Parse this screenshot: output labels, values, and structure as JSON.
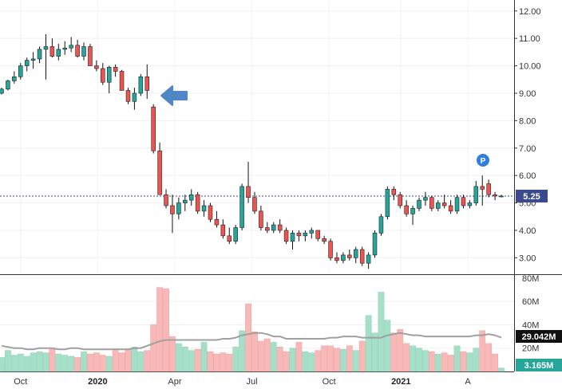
{
  "chart_data": {
    "type": "candlestick",
    "price_axis": {
      "ticks": [
        "12.00",
        "11.00",
        "10.00",
        "9.00",
        "8.00",
        "7.00",
        "6.00",
        "5.00",
        "4.00",
        "3.00"
      ],
      "tick_values": [
        12,
        11,
        10,
        9,
        8,
        7,
        6,
        5,
        4,
        3
      ],
      "range": [
        2.4,
        12.4
      ]
    },
    "volume_axis": {
      "ticks": [
        "80M",
        "60M",
        "40M",
        "20M"
      ],
      "tick_values": [
        80,
        60,
        40,
        20
      ],
      "range": [
        0,
        82
      ]
    },
    "x_axis": {
      "labels": [
        "Oct",
        "2020",
        "Apr",
        "Jul",
        "Oct",
        "2021",
        "A"
      ],
      "bold": [
        false,
        true,
        false,
        false,
        false,
        true,
        false
      ],
      "positions": [
        4,
        19,
        34,
        49,
        64,
        78,
        91
      ]
    },
    "last_price": "5.25",
    "last_price_value": 5.25,
    "last_volume": "3.165M",
    "avg_volume": "29.042M",
    "marker": "P",
    "colors": {
      "up": "#26a69a",
      "down": "#ef5350",
      "up_vol": "#a5dfc8",
      "down_vol": "#f7b9b7",
      "avg": "#999999",
      "dotted": "#3b4a8c",
      "arrow": "#4f86c6",
      "badge": "#2f7fe0"
    },
    "candles": [
      [
        9.0,
        9.2,
        8.95,
        9.15
      ],
      [
        9.15,
        9.5,
        9.1,
        9.45
      ],
      [
        9.45,
        9.8,
        9.35,
        9.6
      ],
      [
        9.6,
        10.1,
        9.5,
        10.0
      ],
      [
        10.0,
        10.3,
        9.8,
        10.2
      ],
      [
        10.2,
        10.5,
        9.9,
        10.25
      ],
      [
        10.25,
        10.7,
        10.1,
        10.6
      ],
      [
        10.6,
        11.15,
        9.5,
        10.7
      ],
      [
        10.7,
        11.0,
        10.3,
        10.35
      ],
      [
        10.35,
        10.8,
        10.2,
        10.6
      ],
      [
        10.6,
        10.9,
        10.4,
        10.65
      ],
      [
        10.65,
        11.05,
        10.5,
        10.75
      ],
      [
        10.75,
        10.95,
        10.3,
        10.35
      ],
      [
        10.35,
        10.85,
        10.2,
        10.7
      ],
      [
        10.7,
        10.8,
        10.0,
        10.0
      ],
      [
        10.0,
        10.2,
        9.8,
        9.9
      ],
      [
        9.9,
        10.1,
        9.3,
        9.4
      ],
      [
        9.4,
        10.0,
        9.0,
        9.95
      ],
      [
        9.95,
        10.05,
        9.6,
        9.8
      ],
      [
        9.8,
        9.85,
        9.1,
        9.1
      ],
      [
        9.1,
        9.2,
        8.6,
        8.7
      ],
      [
        8.7,
        9.2,
        8.4,
        9.0
      ],
      [
        9.0,
        9.7,
        8.9,
        9.6
      ],
      [
        9.6,
        10.05,
        8.8,
        9.1
      ],
      [
        8.5,
        8.6,
        6.8,
        6.9
      ],
      [
        6.9,
        7.2,
        5.3,
        5.3
      ],
      [
        5.3,
        5.5,
        4.8,
        4.9
      ],
      [
        4.9,
        5.3,
        3.9,
        4.6
      ],
      [
        4.6,
        5.2,
        4.4,
        5.0
      ],
      [
        5.0,
        5.3,
        4.7,
        5.1
      ],
      [
        5.1,
        5.5,
        4.9,
        5.3
      ],
      [
        5.3,
        5.4,
        4.6,
        4.7
      ],
      [
        4.7,
        5.1,
        4.5,
        4.9
      ],
      [
        4.9,
        5.0,
        4.3,
        4.4
      ],
      [
        4.4,
        4.7,
        4.1,
        4.2
      ],
      [
        4.2,
        4.4,
        3.7,
        3.8
      ],
      [
        3.8,
        4.1,
        3.5,
        3.6
      ],
      [
        3.6,
        4.2,
        3.5,
        4.1
      ],
      [
        4.1,
        5.7,
        4.0,
        5.6
      ],
      [
        5.6,
        6.5,
        5.0,
        5.2
      ],
      [
        5.2,
        5.4,
        4.6,
        4.7
      ],
      [
        4.7,
        4.9,
        4.0,
        4.1
      ],
      [
        4.1,
        4.3,
        3.9,
        4.0
      ],
      [
        4.0,
        4.3,
        3.9,
        4.2
      ],
      [
        4.2,
        4.4,
        3.9,
        4.0
      ],
      [
        4.0,
        4.1,
        3.5,
        3.6
      ],
      [
        3.6,
        4.0,
        3.3,
        3.9
      ],
      [
        3.9,
        4.0,
        3.6,
        3.8
      ],
      [
        3.8,
        4.0,
        3.6,
        3.9
      ],
      [
        3.9,
        4.1,
        3.7,
        4.0
      ],
      [
        4.0,
        4.0,
        3.6,
        3.7
      ],
      [
        3.7,
        3.8,
        3.5,
        3.6
      ],
      [
        3.6,
        3.7,
        2.9,
        3.0
      ],
      [
        3.0,
        3.2,
        2.8,
        2.9
      ],
      [
        2.9,
        3.2,
        2.8,
        3.1
      ],
      [
        3.1,
        3.3,
        2.9,
        3.0
      ],
      [
        3.0,
        3.4,
        2.8,
        3.3
      ],
      [
        3.3,
        3.4,
        2.7,
        2.8
      ],
      [
        2.8,
        3.2,
        2.6,
        3.1
      ],
      [
        3.1,
        4.0,
        3.0,
        3.9
      ],
      [
        3.9,
        4.6,
        3.8,
        4.5
      ],
      [
        4.5,
        5.6,
        4.4,
        5.5
      ],
      [
        5.5,
        5.6,
        5.1,
        5.3
      ],
      [
        5.3,
        5.4,
        4.8,
        4.9
      ],
      [
        4.9,
        5.1,
        4.5,
        4.6
      ],
      [
        4.6,
        4.9,
        4.2,
        4.8
      ],
      [
        4.8,
        5.2,
        4.7,
        5.1
      ],
      [
        5.1,
        5.4,
        4.9,
        5.2
      ],
      [
        5.2,
        5.25,
        4.7,
        4.8
      ],
      [
        4.8,
        5.1,
        4.7,
        5.0
      ],
      [
        5.0,
        5.3,
        4.8,
        4.9
      ],
      [
        4.9,
        5.1,
        4.6,
        4.7
      ],
      [
        4.7,
        5.3,
        4.6,
        5.2
      ],
      [
        5.2,
        5.3,
        4.8,
        4.9
      ],
      [
        4.9,
        5.1,
        4.8,
        5.0
      ],
      [
        5.0,
        5.8,
        4.9,
        5.6
      ],
      [
        5.6,
        6.0,
        4.9,
        5.5
      ],
      [
        5.7,
        5.85,
        5.2,
        5.3
      ],
      [
        5.3,
        5.4,
        5.1,
        5.25
      ],
      [
        5.25,
        5.3,
        5.2,
        5.25
      ]
    ],
    "volumes": [
      12,
      18,
      14,
      15,
      13,
      16,
      17,
      16,
      19,
      15,
      14,
      13,
      12,
      17,
      15,
      16,
      14,
      13,
      18,
      16,
      19,
      21,
      17,
      18,
      40,
      72,
      71,
      30,
      24,
      21,
      18,
      19,
      25,
      17,
      15,
      16,
      15,
      21,
      35,
      58,
      34,
      26,
      28,
      25,
      21,
      17,
      20,
      25,
      17,
      16,
      18,
      22,
      22,
      20,
      19,
      22,
      18,
      26,
      48,
      33,
      68,
      44,
      33,
      36,
      24,
      22,
      20,
      18,
      17,
      15,
      16,
      14,
      22,
      17,
      16,
      20,
      35,
      24,
      15,
      3
    ],
    "avg_volume_line": [
      22,
      21,
      20,
      20,
      19,
      19,
      20,
      20,
      20,
      19,
      19,
      20,
      20,
      19,
      19,
      19,
      19,
      19,
      19,
      19,
      19,
      20,
      20,
      22,
      24,
      26,
      27,
      27,
      27,
      27,
      27,
      27,
      27,
      27,
      27,
      28,
      28,
      29,
      31,
      32,
      33,
      33,
      32,
      30,
      30,
      28,
      28,
      28,
      28,
      28,
      28,
      28,
      29,
      29,
      30,
      30,
      30,
      29,
      29,
      29,
      29,
      31,
      32,
      33,
      32,
      31,
      31,
      30,
      30,
      30,
      30,
      30,
      30,
      30,
      30,
      31,
      31,
      32,
      31,
      29
    ]
  }
}
